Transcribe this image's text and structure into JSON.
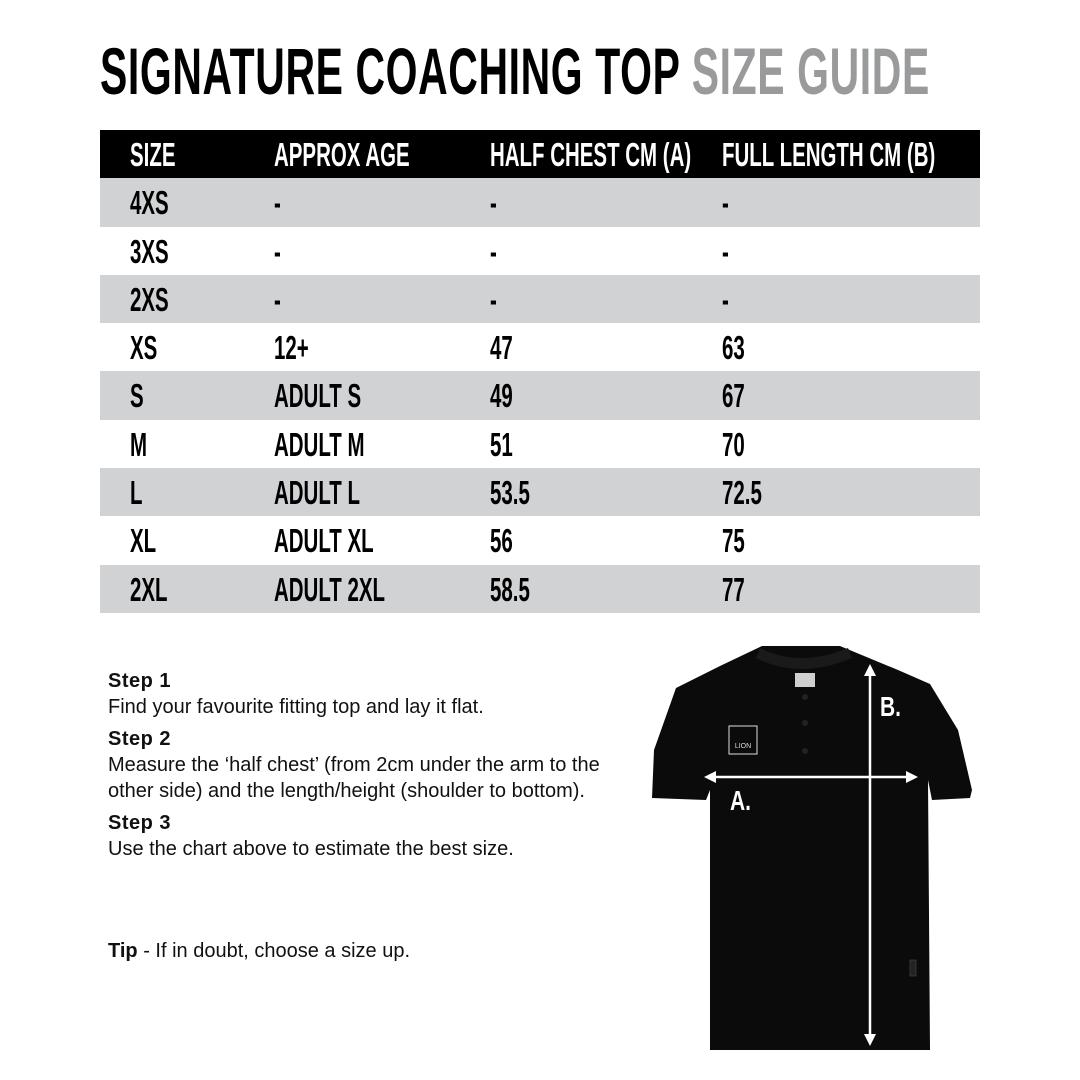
{
  "title": {
    "main": "SIGNATURE COACHING TOP",
    "sub": "SIZE GUIDE"
  },
  "table": {
    "headers": [
      "SIZE",
      "APPROX AGE",
      "HALF CHEST CM (A)",
      "FULL LENGTH CM (B)"
    ],
    "rows": [
      [
        "4XS",
        "-",
        "-",
        "-"
      ],
      [
        "3XS",
        "-",
        "-",
        "-"
      ],
      [
        "2XS",
        "-",
        "-",
        "-"
      ],
      [
        "XS",
        "12+",
        "47",
        "63"
      ],
      [
        "S",
        "ADULT S",
        "49",
        "67"
      ],
      [
        "M",
        "ADULT M",
        "51",
        "70"
      ],
      [
        "L",
        "ADULT L",
        "53.5",
        "72.5"
      ],
      [
        "XL",
        "ADULT XL",
        "56",
        "75"
      ],
      [
        "2XL",
        "ADULT 2XL",
        "58.5",
        "77"
      ]
    ]
  },
  "steps": [
    {
      "heading": "Step 1",
      "text": "Find your favourite fitting top and lay it flat."
    },
    {
      "heading": "Step 2",
      "text": "Measure the ‘half chest’ (from 2cm under the arm to the other side) and the length/height (shoulder to bottom)."
    },
    {
      "heading": "Step 3",
      "text": "Use the chart above to estimate the best size."
    }
  ],
  "tip": {
    "label": "Tip",
    "text": " - If in doubt, choose a size up."
  },
  "diagram": {
    "label_a": "A.",
    "label_b": "B.",
    "logo_text": "LION"
  },
  "colors": {
    "header_bg": "#000000",
    "row_grey": "#d1d2d4",
    "subtitle": "#999a9c"
  }
}
